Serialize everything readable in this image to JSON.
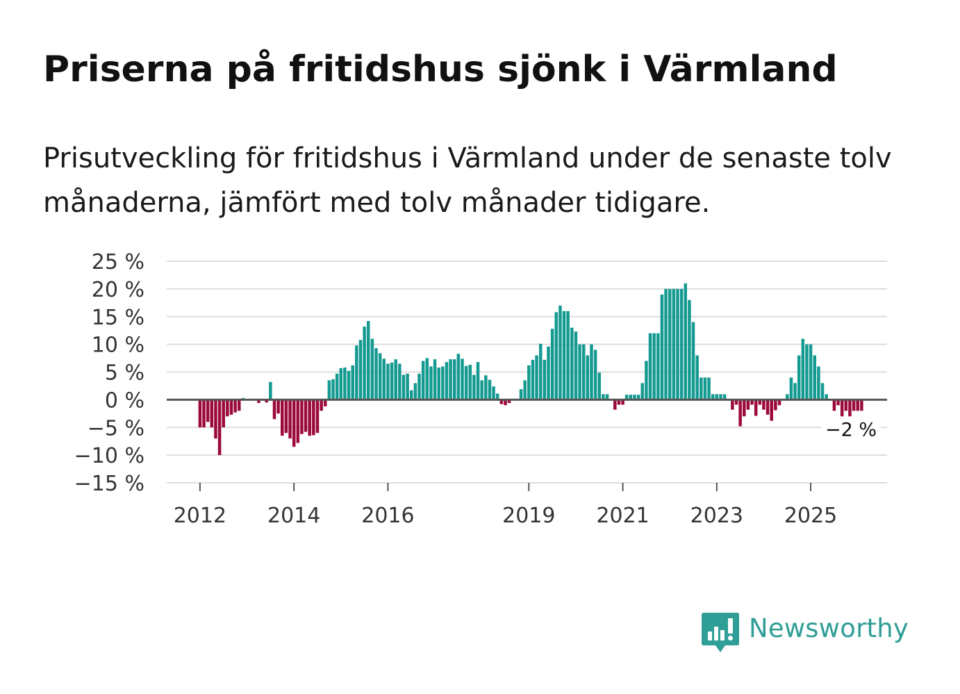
{
  "header": {
    "title": "Priserna på fritidshus sjönk i Värmland",
    "subtitle": "Prisutveckling för fritidshus i Värmland under de senaste tolv månaderna, jämfört med tolv månader tidigare."
  },
  "chart_data": {
    "type": "bar",
    "title": "Priserna på fritidshus sjönk i Värmland",
    "xlabel": "",
    "ylabel": "",
    "ylim": [
      -15,
      25
    ],
    "yticks": [
      25,
      20,
      15,
      10,
      5,
      0,
      -5,
      -10,
      -15
    ],
    "ytick_labels": [
      "25 %",
      "20 %",
      "15 %",
      "10 %",
      "5 %",
      "0 %",
      "−5 %",
      "−10 %",
      "−15 %"
    ],
    "xtick_labels": [
      "2012",
      "2014",
      "2016",
      "2019",
      "2021",
      "2023",
      "2025"
    ],
    "xtick_months": [
      0,
      24,
      48,
      84,
      108,
      132,
      156
    ],
    "x_start": "2012-01",
    "month_range": [
      -8.5,
      175.5
    ],
    "grid": true,
    "positive_color": "#159a92",
    "negative_color": "#9c0a3b",
    "values": [
      -5,
      -5,
      -4,
      -5,
      -7,
      -10,
      -5,
      -3,
      -2.7,
      -2.3,
      -2,
      0.3,
      0,
      0,
      0,
      -0.6,
      0,
      -0.5,
      3.2,
      -3.5,
      -2.5,
      -6.5,
      -6,
      -7,
      -8.5,
      -7.8,
      -6.2,
      -5.8,
      -6.5,
      -6.4,
      -6,
      -2,
      -1.2,
      3.5,
      3.7,
      4.7,
      5.7,
      5.8,
      5.2,
      6.2,
      9.8,
      10.8,
      13.2,
      14.2,
      11,
      9.3,
      8.4,
      7.4,
      6.5,
      6.7,
      7.3,
      6.5,
      4.5,
      4.7,
      1.7,
      3,
      4.7,
      7,
      7.5,
      6,
      7.3,
      5.8,
      6,
      6.8,
      7.3,
      7.3,
      8.3,
      7.4,
      6.1,
      6.3,
      4.5,
      6.8,
      3.5,
      4.4,
      3.6,
      2.4,
      1.1,
      -0.8,
      -1,
      -0.6,
      0,
      0,
      1.9,
      3.5,
      6.2,
      7.2,
      8,
      10.1,
      7.2,
      9.6,
      12.8,
      15.8,
      17,
      16,
      16,
      13,
      12.3,
      10,
      10,
      8,
      10,
      9,
      4.9,
      1,
      1,
      0,
      -1.8,
      -0.9,
      -0.9,
      0.9,
      0.9,
      0.9,
      0.9,
      3,
      7,
      12,
      12,
      12,
      19,
      20,
      20,
      20,
      20,
      20,
      21,
      18,
      14,
      8,
      4,
      4,
      4,
      1,
      1,
      1,
      1,
      0,
      -1.8,
      -0.9,
      -4.8,
      -3,
      -1.8,
      -0.9,
      -2.9,
      -0.9,
      -1.8,
      -2.7,
      -3.8,
      -1.9,
      -1,
      0,
      1,
      4,
      3,
      8,
      11,
      10,
      10,
      8,
      6,
      3,
      1,
      0,
      -2,
      -1,
      -3,
      -2,
      -3,
      -2,
      -2,
      -2
    ],
    "annotations": [
      {
        "text": "−2 %",
        "at": "last"
      }
    ]
  },
  "brand": {
    "name": "Newsworthy",
    "logo_icon": "bar-chart-speech-bubble-icon",
    "color": "#2f9e96"
  }
}
